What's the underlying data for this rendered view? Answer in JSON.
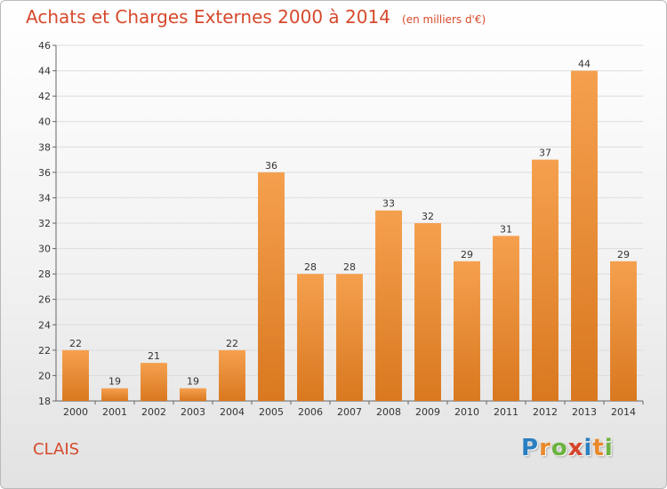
{
  "header": {
    "title": "Achats et Charges Externes 2000 à 2014",
    "subtitle": "(en milliers d'€)"
  },
  "location": "CLAIS",
  "brand": {
    "name": "Proxiti",
    "letters": [
      {
        "char": "P",
        "color": "#2a7fc1"
      },
      {
        "char": "r",
        "color": "#e8892a"
      },
      {
        "char": "o",
        "color": "#6cb33f"
      },
      {
        "char": "x",
        "color": "#d8452b"
      },
      {
        "char": "i",
        "color": "#2a7fc1"
      },
      {
        "char": "t",
        "color": "#e8892a"
      },
      {
        "char": "i",
        "color": "#6cb33f"
      }
    ]
  },
  "chart_data": {
    "type": "bar",
    "categories": [
      "2000",
      "2001",
      "2002",
      "2003",
      "2004",
      "2005",
      "2006",
      "2007",
      "2008",
      "2009",
      "2010",
      "2011",
      "2012",
      "2013",
      "2014"
    ],
    "values": [
      22,
      19,
      21,
      19,
      22,
      36,
      28,
      28,
      33,
      32,
      29,
      31,
      37,
      44,
      29
    ],
    "ylim": [
      18,
      46
    ],
    "yticks": [
      18,
      20,
      22,
      24,
      26,
      28,
      30,
      32,
      34,
      36,
      38,
      40,
      42,
      44,
      46
    ],
    "grid": true,
    "bar_color_top": "#f5a04e",
    "bar_color_bottom": "#d9781f",
    "legend": "none"
  }
}
